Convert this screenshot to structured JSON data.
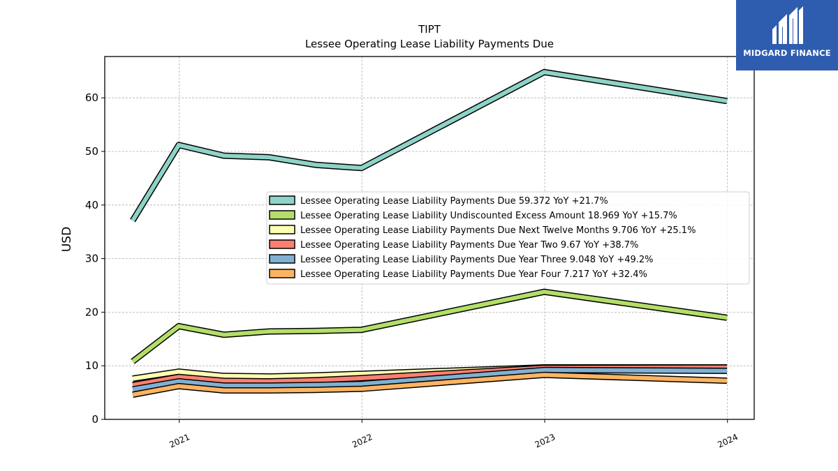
{
  "chart_data": {
    "type": "line",
    "title": "TIPT",
    "subtitle": "Lessee Operating Lease Liability Payments Due",
    "xlabel": "",
    "ylabel": "USD",
    "ylim": [
      0,
      68
    ],
    "yticks": [
      0,
      10,
      20,
      30,
      40,
      50,
      60
    ],
    "xticks": [
      "2021",
      "2022",
      "2023",
      "2024"
    ],
    "grid": true,
    "legend_position": "center-right",
    "x": [
      "2020-09-30",
      "2020-12-31",
      "2021-03-31",
      "2021-06-30",
      "2021-09-30",
      "2021-12-31",
      "2022-12-31",
      "2023-12-31"
    ],
    "series": [
      {
        "name": "Lessee Operating Lease Liability Payments Due  59.372 YoY +21.7%",
        "color": "#8dd3c7",
        "values": [
          37.1,
          51.2,
          49.2,
          48.9,
          47.5,
          46.9,
          64.8,
          59.4
        ]
      },
      {
        "name": "Lessee Operating Lease Liability Undiscounted Excess Amount  18.969 YoY +15.7%",
        "color": "#b3de69",
        "values": [
          10.8,
          17.4,
          15.8,
          16.4,
          16.5,
          16.7,
          23.8,
          18.97
        ]
      },
      {
        "name": "Lessee Operating Lease Liability Payments Due Next Twelve Months  9.706 YoY +25.1%",
        "color": "#ffffb3",
        "values": [
          7.6,
          8.9,
          8.1,
          8.0,
          8.2,
          8.5,
          9.7,
          9.706
        ]
      },
      {
        "name": "Lessee Operating Lease Liability Payments Due Year Two  9.67 YoY +38.7%",
        "color": "#fb8072",
        "values": [
          6.4,
          7.9,
          7.2,
          7.1,
          7.3,
          7.7,
          9.6,
          9.67
        ]
      },
      {
        "name": "Lessee Operating Lease Liability Payments Due Year Three  9.048 YoY +49.2%",
        "color": "#80b1d3",
        "values": [
          5.6,
          7.1,
          6.3,
          6.3,
          6.4,
          6.6,
          9.2,
          9.048
        ]
      },
      {
        "name": "Lessee Operating Lease Liability Payments Due Year Four  7.217 YoY +32.4%",
        "color": "#fdb462",
        "values": [
          4.6,
          6.2,
          5.4,
          5.4,
          5.5,
          5.7,
          8.3,
          7.217
        ]
      }
    ]
  },
  "logo": {
    "text": "MIDGARD FINANCE",
    "color": "#2e5db0"
  }
}
